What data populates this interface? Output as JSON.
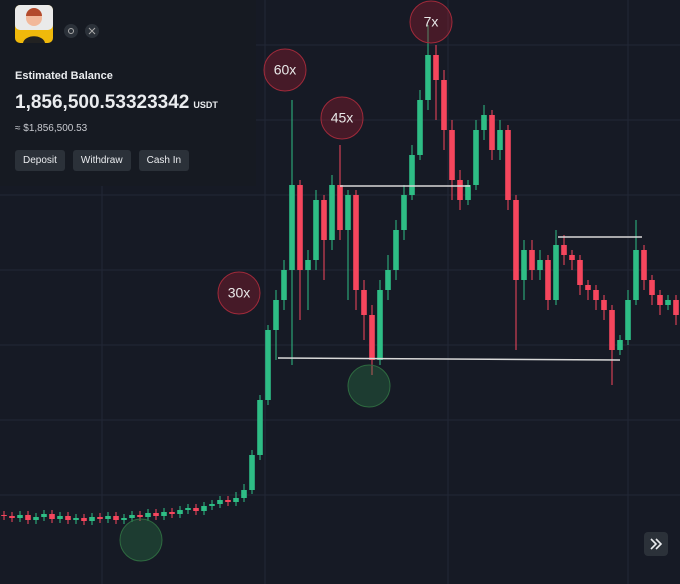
{
  "header": {
    "balance_label": "Estimated Balance",
    "balance": "1,856,500.53323342",
    "unit": "USDT",
    "approx": "≈ $1,856,500.53"
  },
  "buttons": [
    "Deposit",
    "Withdraw",
    "Cash In"
  ],
  "annotations": [
    "60x",
    "45x",
    "7x",
    "30x"
  ],
  "chart_data": {
    "type": "candlestick",
    "open": [
      85,
      84,
      82,
      85,
      80,
      83,
      86,
      81,
      84,
      80,
      82,
      79,
      83,
      81,
      84,
      80,
      82,
      85,
      83,
      87,
      84,
      88,
      86,
      90,
      92,
      89,
      94,
      96,
      100,
      98,
      102,
      110,
      145,
      200,
      270,
      300,
      330,
      415,
      330,
      340,
      400,
      360,
      415,
      370,
      405,
      310,
      285,
      240,
      310,
      330,
      370,
      405,
      445,
      500,
      545,
      520,
      470,
      420,
      400,
      415,
      470,
      485,
      450,
      470,
      400,
      320,
      350,
      330,
      340,
      300,
      355,
      345,
      340,
      315,
      310,
      300,
      290,
      250,
      260,
      300,
      350,
      320,
      305,
      295,
      300
    ],
    "high": [
      89,
      88,
      89,
      89,
      87,
      90,
      90,
      88,
      88,
      86,
      86,
      87,
      87,
      88,
      88,
      86,
      89,
      89,
      91,
      91,
      92,
      92,
      94,
      96,
      96,
      98,
      100,
      104,
      104,
      108,
      116,
      150,
      205,
      275,
      310,
      340,
      500,
      420,
      350,
      410,
      405,
      425,
      455,
      410,
      410,
      320,
      295,
      320,
      345,
      380,
      415,
      455,
      510,
      575,
      555,
      530,
      480,
      430,
      420,
      480,
      495,
      490,
      480,
      475,
      405,
      360,
      360,
      350,
      345,
      370,
      365,
      350,
      345,
      320,
      315,
      305,
      295,
      265,
      310,
      380,
      355,
      325,
      310,
      305,
      305
    ],
    "low": [
      80,
      78,
      78,
      76,
      76,
      79,
      77,
      77,
      76,
      76,
      75,
      75,
      77,
      77,
      76,
      76,
      78,
      79,
      79,
      80,
      80,
      82,
      82,
      86,
      85,
      85,
      90,
      92,
      94,
      94,
      98,
      106,
      140,
      195,
      240,
      290,
      235,
      280,
      290,
      330,
      320,
      350,
      360,
      300,
      290,
      260,
      225,
      235,
      300,
      320,
      360,
      400,
      440,
      490,
      480,
      450,
      400,
      390,
      395,
      410,
      460,
      440,
      440,
      390,
      250,
      300,
      320,
      320,
      290,
      295,
      335,
      330,
      305,
      300,
      290,
      280,
      215,
      245,
      255,
      295,
      310,
      295,
      285,
      290,
      275
    ],
    "close": [
      84,
      82,
      85,
      80,
      83,
      86,
      81,
      84,
      80,
      82,
      79,
      83,
      81,
      84,
      80,
      82,
      85,
      83,
      87,
      84,
      88,
      86,
      90,
      92,
      89,
      94,
      96,
      100,
      98,
      102,
      110,
      145,
      200,
      270,
      300,
      330,
      415,
      330,
      340,
      400,
      360,
      415,
      370,
      405,
      310,
      285,
      240,
      310,
      330,
      370,
      405,
      445,
      500,
      545,
      520,
      470,
      420,
      400,
      415,
      470,
      485,
      450,
      470,
      400,
      320,
      350,
      330,
      340,
      300,
      355,
      345,
      340,
      315,
      310,
      300,
      290,
      250,
      260,
      300,
      350,
      320,
      305,
      295,
      300,
      285
    ],
    "ylim": [
      16,
      600
    ],
    "colors": {
      "up": "#2ebd85",
      "down": "#f6465d"
    }
  }
}
